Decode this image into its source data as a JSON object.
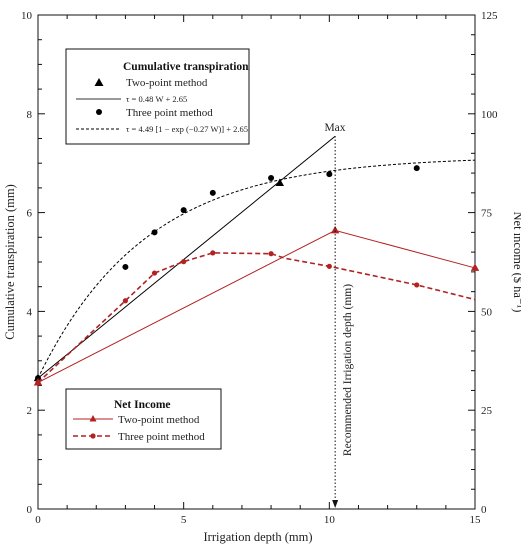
{
  "chart_data": {
    "type": "line",
    "xlabel": "Irrigation depth (mm)",
    "ylabel_left": "Cumulative transpiration (mm)",
    "ylabel_right": "Net income ($ ha⁻¹)",
    "xlim": [
      0,
      15
    ],
    "ylim_left": [
      0,
      10
    ],
    "ylim_right": [
      0,
      125
    ],
    "xticks": [
      "0",
      "5",
      "10",
      "15"
    ],
    "yticks_left": [
      "0",
      "2",
      "4",
      "6",
      "8",
      "10"
    ],
    "yticks_right": [
      "0",
      "25",
      "50",
      "75",
      "100",
      "125"
    ],
    "grid": false,
    "legend_transpiration": {
      "title": "Cumulative transpiration",
      "two_point_label": "Two-point method",
      "two_point_eq": "τ = 0.48 W + 2.65",
      "three_point_label": "Three point method",
      "three_point_eq": "τ = 4.49 [1 − exp (−0.27 W)] + 2.65",
      "placement": "top-left"
    },
    "legend_income": {
      "title": "Net Income",
      "two_point_label": "Two-point method",
      "three_point_label": "Three point method",
      "placement": "bottom-left"
    },
    "annotations": {
      "max_label": "Max",
      "recommended_label": "Recommended Irrigation depth (mm)",
      "recommended_x": 10.2
    },
    "series": [
      {
        "name": "Two-point method",
        "group": "transpiration",
        "axis": "left",
        "style": "solid",
        "color": "#000000",
        "marker": "triangle",
        "points": [
          [
            0,
            2.65
          ],
          [
            8.3,
            6.6
          ]
        ],
        "fit": {
          "kind": "linear",
          "slope": 0.48,
          "intercept": 2.65,
          "x_range": [
            0,
            10.2
          ]
        }
      },
      {
        "name": "Three point method",
        "group": "transpiration",
        "axis": "left",
        "style": "dashed",
        "color": "#000000",
        "marker": "circle",
        "points": [
          [
            0,
            2.65
          ],
          [
            3,
            4.9
          ],
          [
            4,
            5.6
          ],
          [
            5,
            6.05
          ],
          [
            6,
            6.4
          ],
          [
            8,
            6.7
          ],
          [
            10,
            6.78
          ],
          [
            13,
            6.9
          ]
        ],
        "fit": {
          "kind": "exp",
          "a": 4.49,
          "k": 0.27,
          "c": 2.65,
          "x_range": [
            0,
            15
          ]
        }
      },
      {
        "name": "Two-point method",
        "group": "income",
        "axis": "right",
        "style": "solid",
        "color": "#b22222",
        "marker": "triangle",
        "points": [
          [
            0,
            32
          ],
          [
            10.2,
            70.5
          ],
          [
            15,
            61
          ]
        ]
      },
      {
        "name": "Three point method",
        "group": "income",
        "axis": "right",
        "style": "dashed",
        "color": "#b22222",
        "marker": "circle",
        "points": [
          [
            0,
            32
          ],
          [
            3,
            52.7
          ],
          [
            4,
            59.7
          ],
          [
            5,
            62.6
          ],
          [
            6,
            64.8
          ],
          [
            8,
            64.6
          ],
          [
            8.5,
            63.4
          ],
          [
            10,
            61.4
          ],
          [
            13,
            56.7
          ],
          [
            15,
            53
          ]
        ],
        "marker_x": [
          0,
          3,
          4,
          5,
          6,
          8,
          10,
          13
        ]
      }
    ]
  }
}
